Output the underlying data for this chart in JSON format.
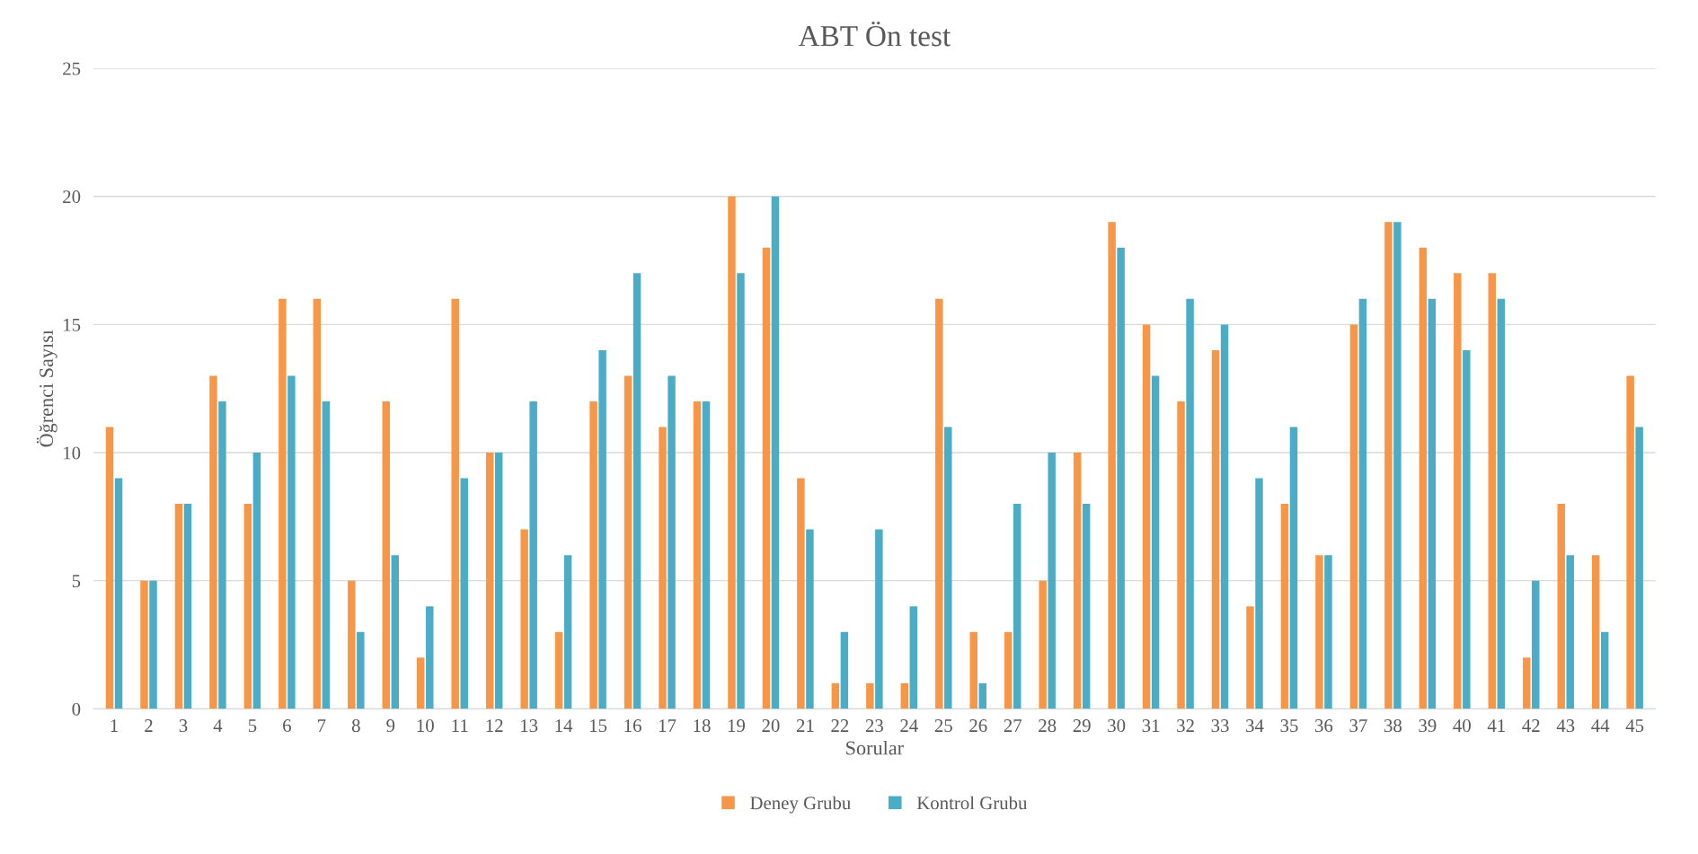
{
  "chart_data": {
    "type": "bar",
    "title": "ABT Ön test",
    "xlabel": "Sorular",
    "ylabel": "Öğrenci Sayısı",
    "categories": [
      "1",
      "2",
      "3",
      "4",
      "5",
      "6",
      "7",
      "8",
      "9",
      "10",
      "11",
      "12",
      "13",
      "14",
      "15",
      "16",
      "17",
      "18",
      "19",
      "20",
      "21",
      "22",
      "23",
      "24",
      "25",
      "26",
      "27",
      "28",
      "29",
      "30",
      "31",
      "32",
      "33",
      "34",
      "35",
      "36",
      "37",
      "38",
      "39",
      "40",
      "41",
      "42",
      "43",
      "44",
      "45"
    ],
    "series": [
      {
        "name": "Deney Grubu",
        "color": "#f79646",
        "values": [
          11,
          5,
          8,
          13,
          8,
          16,
          16,
          5,
          12,
          2,
          16,
          10,
          7,
          3,
          12,
          13,
          11,
          12,
          20,
          18,
          9,
          1,
          1,
          1,
          16,
          3,
          3,
          5,
          10,
          19,
          15,
          12,
          14,
          4,
          8,
          6,
          15,
          19,
          18,
          17,
          17,
          2,
          8,
          6,
          13
        ]
      },
      {
        "name": "Kontrol Grubu",
        "color": "#4bacc6",
        "values": [
          9,
          5,
          8,
          12,
          10,
          13,
          12,
          3,
          6,
          4,
          9,
          10,
          12,
          6,
          14,
          17,
          13,
          12,
          17,
          20,
          7,
          3,
          7,
          4,
          11,
          1,
          8,
          10,
          8,
          18,
          13,
          16,
          15,
          9,
          11,
          6,
          16,
          19,
          16,
          14,
          16,
          5,
          6,
          3,
          11
        ]
      }
    ],
    "ylim": [
      0,
      25
    ],
    "yticks": [
      0,
      5,
      10,
      15,
      20,
      25
    ],
    "grid": "y",
    "legend": "bottom"
  }
}
